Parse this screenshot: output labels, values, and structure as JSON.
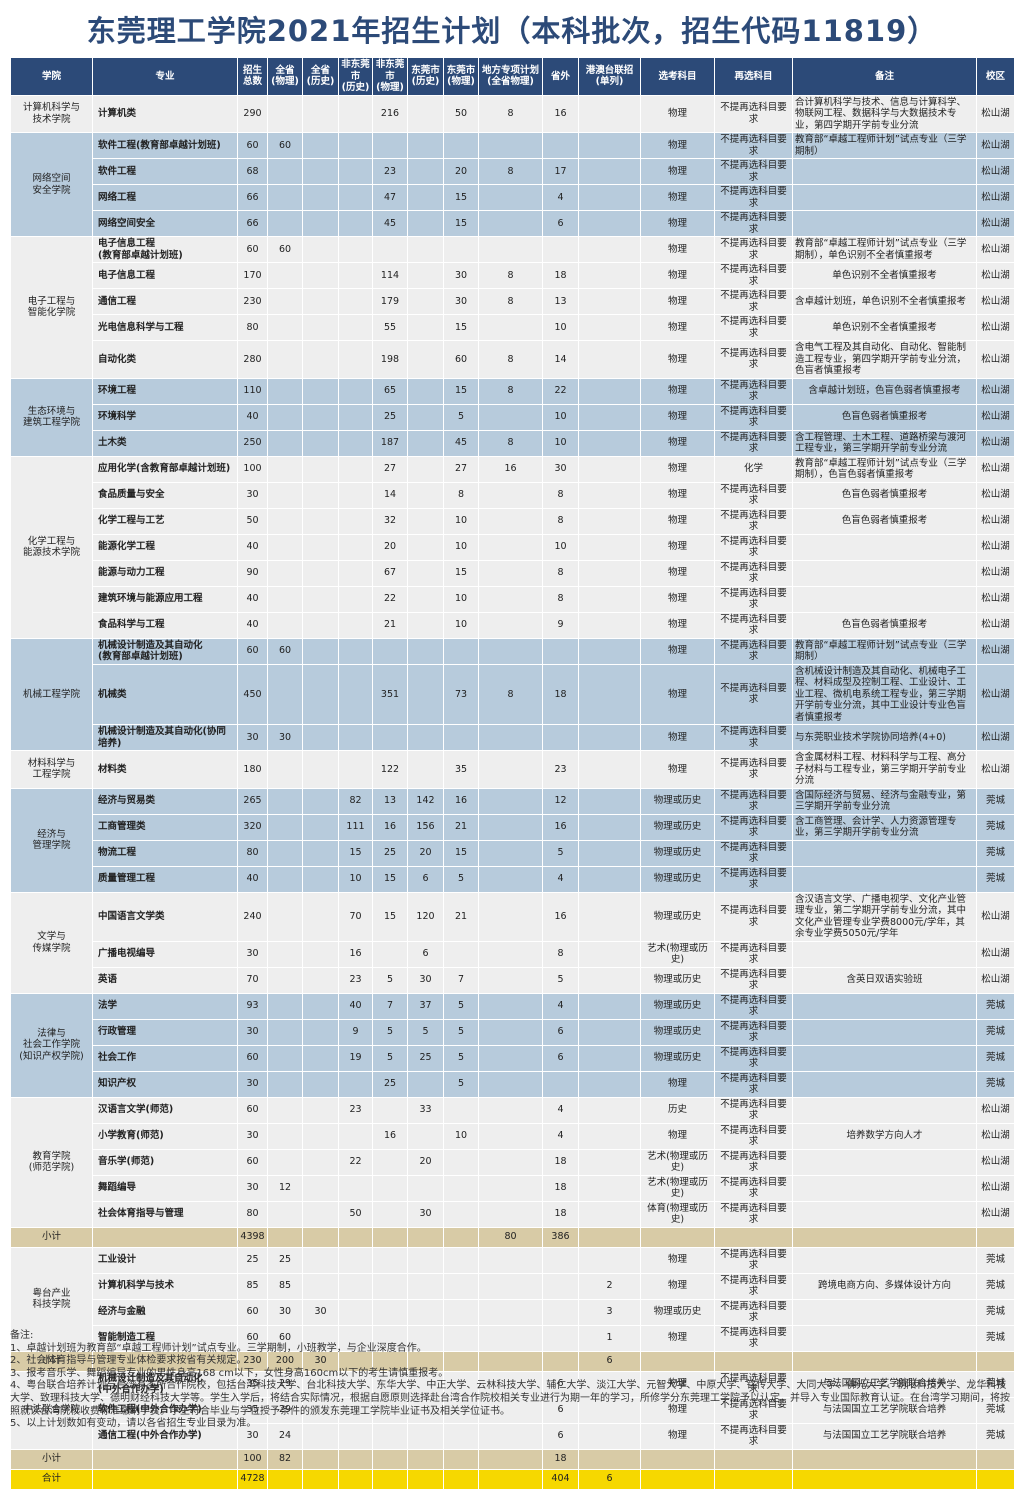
{
  "header": {
    "title": "东莞理工学院2021年招生计划（本科批次，招生代码11819）"
  },
  "table": {
    "headers": [
      "学院",
      "专业",
      "招生\n总数",
      "全省\n(物理)",
      "全省\n(历史)",
      "非东莞市\n(历史)",
      "非东莞市\n(物理)",
      "东莞市\n(历史)",
      "东莞市\n(物理)",
      "地方专项计划\n(全省物理)",
      "省外",
      "港澳台联招\n(单列)",
      "选考科目",
      "再选科目",
      "备注",
      "校区"
    ],
    "header_color": "#2c4a78",
    "sections": [
      {
        "college": "计算机科学与\n技术学院",
        "color": "#eeeeee",
        "rows": [
          [
            "计算机类",
            290,
            null,
            null,
            null,
            216,
            null,
            50,
            8,
            16,
            null,
            "物理",
            "不提再选科目要求",
            "合计算机科学与技术、信息与计算科学、物联网工程、数据科学与大数据技术专业，第四学期开学前专业分流",
            "松山湖"
          ]
        ]
      },
      {
        "college": "网络空间\n安全学院",
        "color": "#b7cbdc",
        "rows": [
          [
            "软件工程(教育部卓越计划班)",
            60,
            60,
            null,
            null,
            null,
            null,
            null,
            null,
            null,
            null,
            "物理",
            "不提再选科目要求",
            "教育部“卓越工程师计划”试点专业（三学期制）",
            "松山湖"
          ],
          [
            "软件工程",
            68,
            null,
            null,
            null,
            23,
            null,
            20,
            8,
            17,
            null,
            "物理",
            "不提再选科目要求",
            null,
            "松山湖"
          ],
          [
            "网络工程",
            66,
            null,
            null,
            null,
            47,
            null,
            15,
            null,
            4,
            null,
            "物理",
            "不提再选科目要求",
            null,
            "松山湖"
          ],
          [
            "网络空间安全",
            66,
            null,
            null,
            null,
            45,
            null,
            15,
            null,
            6,
            null,
            "物理",
            "不提再选科目要求",
            null,
            "松山湖"
          ]
        ]
      },
      {
        "college": "电子工程与\n智能化学院",
        "color": "#eeeeee",
        "rows": [
          [
            "电子信息工程\n(教育部卓越计划班)",
            60,
            60,
            null,
            null,
            null,
            null,
            null,
            null,
            null,
            null,
            "物理",
            "不提再选科目要求",
            "教育部“卓越工程师计划”试点专业（三学期制），单色识别不全者慎重报考",
            "松山湖"
          ],
          [
            "电子信息工程",
            170,
            null,
            null,
            null,
            114,
            null,
            30,
            8,
            18,
            null,
            "物理",
            "不提再选科目要求",
            "单色识别不全者慎重报考",
            "松山湖"
          ],
          [
            "通信工程",
            230,
            null,
            null,
            null,
            179,
            null,
            30,
            8,
            13,
            null,
            "物理",
            "不提再选科目要求",
            "含卓越计划班，单色识别不全者慎重报考",
            "松山湖"
          ],
          [
            "光电信息科学与工程",
            80,
            null,
            null,
            null,
            55,
            null,
            15,
            null,
            10,
            null,
            "物理",
            "不提再选科目要求",
            "单色识别不全者慎重报考",
            "松山湖"
          ],
          [
            "自动化类",
            280,
            null,
            null,
            null,
            198,
            null,
            60,
            8,
            14,
            null,
            "物理",
            "不提再选科目要求",
            "含电气工程及其自动化、自动化、智能制造工程专业，第四学期开学前专业分流，色盲者慎重报考",
            "松山湖"
          ]
        ]
      },
      {
        "college": "生态环境与\n建筑工程学院",
        "color": "#b7cbdc",
        "rows": [
          [
            "环境工程",
            110,
            null,
            null,
            null,
            65,
            null,
            15,
            8,
            22,
            null,
            "物理",
            "不提再选科目要求",
            "含卓越计划班，色盲色弱者慎重报考",
            "松山湖"
          ],
          [
            "环境科学",
            40,
            null,
            null,
            null,
            25,
            null,
            5,
            null,
            10,
            null,
            "物理",
            "不提再选科目要求",
            "色盲色弱者慎重报考",
            "松山湖"
          ],
          [
            "土木类",
            250,
            null,
            null,
            null,
            187,
            null,
            45,
            8,
            10,
            null,
            "物理",
            "不提再选科目要求",
            "含工程管理、土木工程、道路桥梁与渡河工程专业，第三学期开学前专业分流",
            "松山湖"
          ]
        ]
      },
      {
        "college": "化学工程与\n能源技术学院",
        "color": "#eeeeee",
        "rows": [
          [
            "应用化学(含教育部卓越计划班)",
            100,
            null,
            null,
            null,
            27,
            null,
            27,
            16,
            30,
            null,
            "物理",
            "化学",
            "教育部“卓越工程师计划”试点专业（三学期制），色盲色弱者慎重报考",
            "松山湖"
          ],
          [
            "食品质量与安全",
            30,
            null,
            null,
            null,
            14,
            null,
            8,
            null,
            8,
            null,
            "物理",
            "不提再选科目要求",
            "色盲色弱者慎重报考",
            "松山湖"
          ],
          [
            "化学工程与工艺",
            50,
            null,
            null,
            null,
            32,
            null,
            10,
            null,
            8,
            null,
            "物理",
            "不提再选科目要求",
            "色盲色弱者慎重报考",
            "松山湖"
          ],
          [
            "能源化学工程",
            40,
            null,
            null,
            null,
            20,
            null,
            10,
            null,
            10,
            null,
            "物理",
            "不提再选科目要求",
            null,
            "松山湖"
          ],
          [
            "能源与动力工程",
            90,
            null,
            null,
            null,
            67,
            null,
            15,
            null,
            8,
            null,
            "物理",
            "不提再选科目要求",
            null,
            "松山湖"
          ],
          [
            "建筑环境与能源应用工程",
            40,
            null,
            null,
            null,
            22,
            null,
            10,
            null,
            8,
            null,
            "物理",
            "不提再选科目要求",
            null,
            "松山湖"
          ],
          [
            "食品科学与工程",
            40,
            null,
            null,
            null,
            21,
            null,
            10,
            null,
            9,
            null,
            "物理",
            "不提再选科目要求",
            "色盲色弱者慎重报考",
            "松山湖"
          ]
        ]
      },
      {
        "college": "机械工程学院",
        "color": "#b7cbdc",
        "rows": [
          [
            "机械设计制造及其自动化\n(教育部卓越计划班)",
            60,
            60,
            null,
            null,
            null,
            null,
            null,
            null,
            null,
            null,
            "物理",
            "不提再选科目要求",
            "教育部“卓越工程师计划”试点专业（三学期制）",
            "松山湖"
          ],
          [
            "机械类",
            450,
            null,
            null,
            null,
            351,
            null,
            73,
            8,
            18,
            null,
            "物理",
            "不提再选科目要求",
            "含机械设计制造及其自动化、机械电子工程、材料成型及控制工程、工业设计、工业工程、微机电系统工程专业，第三学期开学前专业分流，其中工业设计专业色盲者慎重报考",
            "松山湖"
          ],
          [
            "机械设计制造及其自动化(协同培养)",
            30,
            30,
            null,
            null,
            null,
            null,
            null,
            null,
            null,
            null,
            "物理",
            "不提再选科目要求",
            "与东莞职业技术学院协同培养(4+0)",
            "松山湖"
          ]
        ]
      },
      {
        "college": "材料科学与\n工程学院",
        "color": "#eeeeee",
        "rows": [
          [
            "材料类",
            180,
            null,
            null,
            null,
            122,
            null,
            35,
            null,
            23,
            null,
            "物理",
            "不提再选科目要求",
            "含金属材料工程、材料科学与工程、高分子材料与工程专业，第三学期开学前专业分流",
            "松山湖"
          ]
        ]
      },
      {
        "college": "经济与\n管理学院",
        "color": "#b7cbdc",
        "rows": [
          [
            "经济与贸易类",
            265,
            null,
            null,
            82,
            13,
            142,
            16,
            null,
            12,
            null,
            "物理或历史",
            "不提再选科目要求",
            "含国际经济与贸易、经济与金融专业，第三学期开学前专业分流",
            "莞城"
          ],
          [
            "工商管理类",
            320,
            null,
            null,
            111,
            16,
            156,
            21,
            null,
            16,
            null,
            "物理或历史",
            "不提再选科目要求",
            "含工商管理、会计学、人力资源管理专业，第三学期开学前专业分流",
            "莞城"
          ],
          [
            "物流工程",
            80,
            null,
            null,
            15,
            25,
            20,
            15,
            null,
            5,
            null,
            "物理或历史",
            "不提再选科目要求",
            null,
            "莞城"
          ],
          [
            "质量管理工程",
            40,
            null,
            null,
            10,
            15,
            6,
            5,
            null,
            4,
            null,
            "物理或历史",
            "不提再选科目要求",
            null,
            "莞城"
          ]
        ]
      },
      {
        "college": "文学与\n传媒学院",
        "color": "#eeeeee",
        "rows": [
          [
            "中国语言文学类",
            240,
            null,
            null,
            70,
            15,
            120,
            21,
            null,
            16,
            null,
            "物理或历史",
            "不提再选科目要求",
            "含汉语言文学、广播电视学、文化产业管理专业，第二学期开学前专业分流，其中文化产业管理专业学费8000元/学年，其余专业学费5050元/学年",
            "松山湖"
          ],
          [
            "广播电视编导",
            30,
            null,
            null,
            16,
            null,
            6,
            null,
            null,
            8,
            null,
            "艺术(物理或历史)",
            "不提再选科目要求",
            null,
            "松山湖"
          ],
          [
            "英语",
            70,
            null,
            null,
            23,
            5,
            30,
            7,
            null,
            5,
            null,
            "物理或历史",
            "不提再选科目要求",
            "含英日双语实验班",
            "松山湖"
          ]
        ]
      },
      {
        "college": "法律与\n社会工作学院\n(知识产权学院)",
        "color": "#b7cbdc",
        "rows": [
          [
            "法学",
            93,
            null,
            null,
            40,
            7,
            37,
            5,
            null,
            4,
            null,
            "物理或历史",
            "不提再选科目要求",
            null,
            "莞城"
          ],
          [
            "行政管理",
            30,
            null,
            null,
            9,
            5,
            5,
            5,
            null,
            6,
            null,
            "物理或历史",
            "不提再选科目要求",
            null,
            "莞城"
          ],
          [
            "社会工作",
            60,
            null,
            null,
            19,
            5,
            25,
            5,
            null,
            6,
            null,
            "物理或历史",
            "不提再选科目要求",
            null,
            "莞城"
          ],
          [
            "知识产权",
            30,
            null,
            null,
            null,
            25,
            null,
            5,
            null,
            null,
            null,
            "物理",
            "不提再选科目要求",
            null,
            "莞城"
          ]
        ]
      },
      {
        "college": "教育学院\n(师范学院)",
        "color": "#eeeeee",
        "rows": [
          [
            "汉语言文学(师范)",
            60,
            null,
            null,
            23,
            null,
            33,
            null,
            null,
            4,
            null,
            "历史",
            "不提再选科目要求",
            null,
            "松山湖"
          ],
          [
            "小学教育(师范)",
            30,
            null,
            null,
            null,
            16,
            null,
            10,
            null,
            4,
            null,
            "物理",
            "不提再选科目要求",
            "培养数学方向人才",
            "松山湖"
          ],
          [
            "音乐学(师范)",
            60,
            null,
            null,
            22,
            null,
            20,
            null,
            null,
            18,
            null,
            "艺术(物理或历史)",
            "不提再选科目要求",
            null,
            "松山湖"
          ],
          [
            "舞蹈编导",
            30,
            12,
            null,
            null,
            null,
            null,
            null,
            null,
            18,
            null,
            "艺术(物理或历史)",
            "不提再选科目要求",
            null,
            "松山湖"
          ],
          [
            "社会体育指导与管理",
            80,
            null,
            null,
            50,
            null,
            30,
            null,
            null,
            18,
            null,
            "体育(物理或历史)",
            "不提再选科目要求",
            null,
            "松山湖"
          ]
        ]
      },
      {
        "label": "小计",
        "color": "#d8cba6",
        "cells": [
          null,
          4398,
          null,
          null,
          null,
          null,
          null,
          null,
          80,
          386,
          null,
          null,
          null,
          null,
          null
        ]
      },
      {
        "college": "粤台产业\n科技学院",
        "color": "#eeeeee",
        "rows": [
          [
            "工业设计",
            25,
            25,
            null,
            null,
            null,
            null,
            null,
            null,
            null,
            null,
            "物理",
            "不提再选科目要求",
            null,
            "莞城"
          ],
          [
            "计算机科学与技术",
            85,
            85,
            null,
            null,
            null,
            null,
            null,
            null,
            null,
            2,
            "物理",
            "不提再选科目要求",
            "跨境电商方向、多媒体设计方向",
            "莞城"
          ],
          [
            "经济与金融",
            60,
            30,
            30,
            null,
            null,
            null,
            null,
            null,
            null,
            3,
            "物理或历史",
            "不提再选科目要求",
            null,
            "莞城"
          ],
          [
            "智能制造工程",
            60,
            60,
            null,
            null,
            null,
            null,
            null,
            null,
            null,
            1,
            "物理",
            "不提再选科目要求",
            null,
            "莞城"
          ]
        ]
      },
      {
        "label": "小计",
        "color": "#d8cba6",
        "cells": [
          null,
          230,
          200,
          30,
          null,
          null,
          null,
          null,
          null,
          null,
          6,
          null,
          null,
          null,
          null
        ]
      },
      {
        "college": "中法联合学院",
        "color": "#eeeeee",
        "rows": [
          [
            "机械设计制造及其自动化\n(中外合作办学)",
            35,
            29,
            null,
            null,
            null,
            null,
            null,
            null,
            6,
            null,
            "物理",
            "不提再选科目要求",
            "与法国国立工艺学院联合培养",
            "莞城"
          ],
          [
            "软件工程(中外合作办学)",
            35,
            29,
            null,
            null,
            null,
            null,
            null,
            null,
            6,
            null,
            "物理",
            "不提再选科目要求",
            "与法国国立工艺学院联合培养",
            "莞城"
          ],
          [
            "通信工程(中外合作办学)",
            30,
            24,
            null,
            null,
            null,
            null,
            null,
            null,
            6,
            null,
            "物理",
            "不提再选科目要求",
            "与法国国立工艺学院联合培养",
            "莞城"
          ]
        ]
      },
      {
        "label": "小计",
        "color": "#d8cba6",
        "cells": [
          null,
          100,
          82,
          null,
          null,
          null,
          null,
          null,
          null,
          18,
          null,
          null,
          null,
          null,
          null
        ]
      },
      {
        "label": "合计",
        "color": "#f6d800",
        "cells": [
          null,
          4728,
          null,
          null,
          null,
          null,
          null,
          null,
          null,
          404,
          6,
          null,
          null,
          null,
          null
        ]
      }
    ]
  },
  "notes": {
    "heading": "备注:",
    "items": [
      "1、卓越计划班为教育部“卓越工程师计划”试点专业。三学期制，小班教学，与企业深度合作。",
      "2、社会体育指导与管理专业体检要求按省有关规定。",
      "3、报考音乐学、舞蹈编导专业的男性身高168 cm以下，女性身高160cm以下的考生请慎重报考。",
      "4、粤台联合培养计划与台湾有多所合作院校，包括台湾科技大学、台北科技大学、东华大学、中正大学、云林科技大学、辅仁大学、淡江大学、元智大学、中原大学、铭传大学、大同大学、佛光大学、朝阳科技大学、龙华科技大学、致理科技大学、德明财经科技大学等。学生入学后，将结合实际情况，根据自愿原则选择赴台湾合作院校相关专业进行为期一年的学习，所修学分东莞理工学院予以认定，并导入专业国际教育认证。在台湾学习期间，将按照就读台湾院校收费标准缴纳学费。学生符合毕业与学位授予条件的颁发东莞理工学院毕业证书及相关学位证书。",
      "5、以上计划数如有变动，请以各省招生专业目录为准。"
    ]
  }
}
